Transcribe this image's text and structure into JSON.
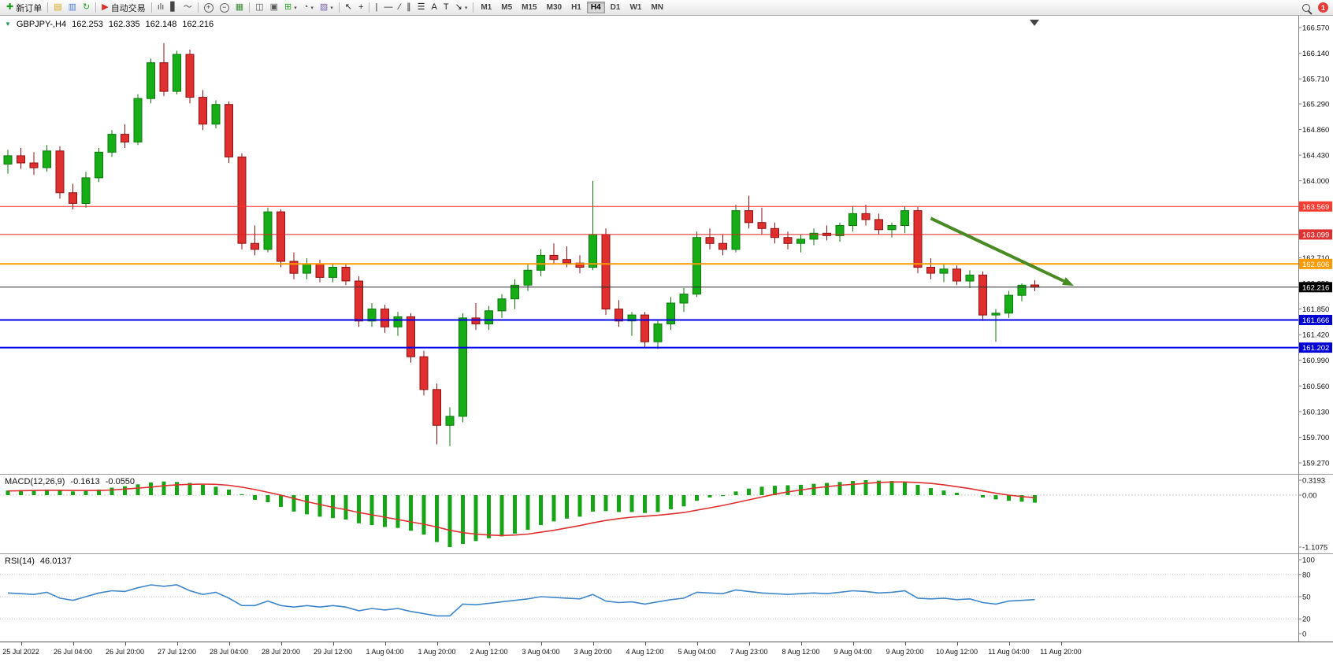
{
  "toolbar": {
    "items": [
      {
        "t": "btn",
        "name": "new-order-button",
        "label": "新订单",
        "glyph": "✚",
        "gc": "#1da11d"
      },
      {
        "t": "sep"
      },
      {
        "t": "btn",
        "name": "market-watch-button",
        "glyph": "▤",
        "gc": "#d9a51a"
      },
      {
        "t": "btn",
        "name": "data-window-button",
        "glyph": "▥",
        "gc": "#4f7fd9"
      },
      {
        "t": "btn",
        "name": "navigator-button",
        "glyph": "↻",
        "gc": "#2aa12a"
      },
      {
        "t": "sep"
      },
      {
        "t": "btn",
        "name": "autotrading-button",
        "label": "自动交易",
        "glyph": "▶",
        "gc": "#d93025"
      },
      {
        "t": "sep"
      },
      {
        "t": "btn",
        "name": "bar-chart-button",
        "glyph": "ılı",
        "gc": "#444444"
      },
      {
        "t": "btn",
        "name": "candlestick-chart-button",
        "glyph": "▋",
        "gc": "#444444"
      },
      {
        "t": "btn",
        "name": "line-chart-button",
        "glyph": "〜",
        "gc": "#444444"
      },
      {
        "t": "sep"
      },
      {
        "t": "btn",
        "name": "zoom-in-button",
        "glyph": "+",
        "circle": true
      },
      {
        "t": "btn",
        "name": "zoom-out-button",
        "glyph": "−",
        "circle": true
      },
      {
        "t": "btn",
        "name": "tile-windows-button",
        "glyph": "▦",
        "gc": "#3f8f3f"
      },
      {
        "t": "sep"
      },
      {
        "t": "btn",
        "name": "arrange-charts-button",
        "glyph": "◫",
        "gc": "#555555"
      },
      {
        "t": "btn",
        "name": "cascade-charts-button",
        "glyph": "▣",
        "gc": "#555555"
      },
      {
        "t": "btn",
        "name": "add-indicator-button",
        "glyph": "⊞",
        "gc": "#2aa12a",
        "caret": true
      },
      {
        "t": "btn",
        "name": "periods-button",
        "glyph": "◔",
        "gc": "#555555",
        "caret": true
      },
      {
        "t": "btn",
        "name": "templates-button",
        "glyph": "▨",
        "gc": "#7a5fb0",
        "caret": true
      },
      {
        "t": "sep"
      },
      {
        "t": "btn",
        "name": "cursor-button",
        "glyph": "↖",
        "gc": "#222222"
      },
      {
        "t": "btn",
        "name": "crosshair-button",
        "glyph": "+",
        "gc": "#222222"
      },
      {
        "t": "sep"
      },
      {
        "t": "btn",
        "name": "vertical-line-button",
        "glyph": "|",
        "gc": "#222222"
      },
      {
        "t": "btn",
        "name": "horizontal-line-button",
        "glyph": "—",
        "gc": "#222222"
      },
      {
        "t": "btn",
        "name": "trendline-button",
        "glyph": "∕",
        "gc": "#222222"
      },
      {
        "t": "btn",
        "name": "equidistant-channel-button",
        "glyph": "∥",
        "gc": "#222222"
      },
      {
        "t": "btn",
        "name": "fibonacci-button",
        "glyph": "☰",
        "gc": "#222222"
      },
      {
        "t": "btn",
        "name": "text-button",
        "glyph": "A",
        "gc": "#222222"
      },
      {
        "t": "btn",
        "name": "text-label-button",
        "glyph": "T",
        "gc": "#222222"
      },
      {
        "t": "btn",
        "name": "arrows-button",
        "glyph": "↘",
        "gc": "#222222",
        "caret": true
      },
      {
        "t": "sep"
      }
    ],
    "timeframes": [
      {
        "label": "M1"
      },
      {
        "label": "M5"
      },
      {
        "label": "M15"
      },
      {
        "label": "M30"
      },
      {
        "label": "H1"
      },
      {
        "label": "H4",
        "active": true
      },
      {
        "label": "D1"
      },
      {
        "label": "W1"
      },
      {
        "label": "MN"
      }
    ],
    "notification_count": "1"
  },
  "chart_data": [
    {
      "type": "candlestick",
      "title": "GBPJPY-,H4",
      "display_ohlc": {
        "open": "162.253",
        "high": "162.335",
        "low": "162.148",
        "close": "162.216"
      },
      "y_axis": {
        "min": 159.27,
        "max": 166.57,
        "tick_labels": [
          "166.570",
          "166.140",
          "165.710",
          "165.290",
          "164.860",
          "164.430",
          "164.000",
          "162.710",
          "162.280",
          "161.850",
          "161.420",
          "160.990",
          "160.560",
          "160.130",
          "159.700",
          "159.270"
        ]
      },
      "x_ticks": {
        "first_index": 1,
        "step": 4,
        "labels": [
          "25 Jul 2022",
          "26 Jul 04:00",
          "26 Jul 20:00",
          "27 Jul 12:00",
          "28 Jul 04:00",
          "28 Jul 20:00",
          "29 Jul 12:00",
          "1 Aug 04:00",
          "1 Aug 20:00",
          "2 Aug 12:00",
          "3 Aug 04:00",
          "3 Aug 20:00",
          "4 Aug 12:00",
          "5 Aug 04:00",
          "7 Aug 23:00",
          "8 Aug 12:00",
          "9 Aug 04:00",
          "9 Aug 20:00",
          "10 Aug 12:00",
          "11 Aug 04:00",
          "11 Aug 20:00"
        ]
      },
      "colors": {
        "up": "#17ad17",
        "up_stroke": "#0b7a0b",
        "down": "#e02f2f",
        "down_stroke": "#8f1212"
      },
      "candles": [
        [
          164.28,
          164.52,
          164.12,
          164.42
        ],
        [
          164.42,
          164.55,
          164.2,
          164.3
        ],
        [
          164.3,
          164.48,
          164.1,
          164.22
        ],
        [
          164.22,
          164.6,
          164.15,
          164.5
        ],
        [
          164.5,
          164.58,
          163.7,
          163.8
        ],
        [
          163.8,
          163.95,
          163.52,
          163.62
        ],
        [
          163.62,
          164.15,
          163.55,
          164.05
        ],
        [
          164.05,
          164.55,
          163.98,
          164.48
        ],
        [
          164.48,
          164.85,
          164.4,
          164.78
        ],
        [
          164.78,
          164.95,
          164.55,
          164.65
        ],
        [
          164.65,
          165.45,
          164.6,
          165.38
        ],
        [
          165.38,
          166.05,
          165.3,
          165.98
        ],
        [
          165.98,
          166.31,
          165.42,
          165.5
        ],
        [
          165.5,
          166.18,
          165.45,
          166.12
        ],
        [
          166.12,
          166.2,
          165.3,
          165.4
        ],
        [
          165.4,
          165.52,
          164.85,
          164.95
        ],
        [
          164.95,
          165.35,
          164.88,
          165.28
        ],
        [
          165.28,
          165.33,
          164.3,
          164.4
        ],
        [
          164.4,
          164.46,
          162.85,
          162.95
        ],
        [
          162.95,
          163.25,
          162.75,
          162.85
        ],
        [
          162.85,
          163.55,
          162.8,
          163.48
        ],
        [
          163.48,
          163.52,
          162.55,
          162.65
        ],
        [
          162.65,
          162.8,
          162.35,
          162.45
        ],
        [
          162.45,
          162.7,
          162.35,
          162.6
        ],
        [
          162.6,
          162.68,
          162.3,
          162.38
        ],
        [
          162.38,
          162.62,
          162.3,
          162.55
        ],
        [
          162.55,
          162.6,
          162.25,
          162.32
        ],
        [
          162.32,
          162.4,
          161.55,
          161.65
        ],
        [
          161.65,
          161.95,
          161.55,
          161.85
        ],
        [
          161.85,
          161.92,
          161.45,
          161.55
        ],
        [
          161.55,
          161.8,
          161.4,
          161.72
        ],
        [
          161.72,
          161.78,
          160.95,
          161.05
        ],
        [
          161.05,
          161.15,
          160.4,
          160.5
        ],
        [
          160.5,
          160.6,
          159.58,
          159.9
        ],
        [
          159.9,
          160.2,
          159.55,
          160.05
        ],
        [
          160.05,
          161.78,
          159.95,
          161.7
        ],
        [
          161.7,
          161.95,
          161.5,
          161.6
        ],
        [
          161.6,
          161.9,
          161.5,
          161.82
        ],
        [
          161.82,
          162.1,
          161.7,
          162.02
        ],
        [
          162.02,
          162.35,
          161.85,
          162.25
        ],
        [
          162.25,
          162.6,
          162.15,
          162.5
        ],
        [
          162.5,
          162.85,
          162.4,
          162.75
        ],
        [
          162.75,
          162.95,
          162.6,
          162.68
        ],
        [
          162.68,
          162.9,
          162.55,
          162.62
        ],
        [
          162.62,
          162.75,
          162.45,
          162.55
        ],
        [
          162.55,
          164.0,
          162.5,
          163.1
        ],
        [
          163.1,
          163.2,
          161.75,
          161.85
        ],
        [
          161.85,
          162.0,
          161.55,
          161.65
        ],
        [
          161.65,
          161.8,
          161.4,
          161.75
        ],
        [
          161.75,
          161.8,
          161.2,
          161.3
        ],
        [
          161.3,
          161.65,
          161.18,
          161.6
        ],
        [
          161.6,
          162.05,
          161.5,
          161.95
        ],
        [
          161.95,
          162.2,
          161.8,
          162.1
        ],
        [
          162.1,
          163.15,
          162.05,
          163.05
        ],
        [
          163.05,
          163.2,
          162.85,
          162.95
        ],
        [
          162.95,
          163.1,
          162.75,
          162.85
        ],
        [
          162.85,
          163.6,
          162.8,
          163.5
        ],
        [
          163.5,
          163.75,
          163.2,
          163.3
        ],
        [
          163.3,
          163.55,
          163.1,
          163.2
        ],
        [
          163.2,
          163.3,
          162.95,
          163.05
        ],
        [
          163.05,
          163.15,
          162.85,
          162.95
        ],
        [
          162.95,
          163.1,
          162.8,
          163.02
        ],
        [
          163.02,
          163.2,
          162.92,
          163.12
        ],
        [
          163.12,
          163.25,
          163.0,
          163.08
        ],
        [
          163.08,
          163.3,
          162.98,
          163.25
        ],
        [
          163.25,
          163.58,
          163.15,
          163.45
        ],
        [
          163.45,
          163.6,
          163.25,
          163.35
        ],
        [
          163.35,
          163.45,
          163.1,
          163.18
        ],
        [
          163.18,
          163.3,
          163.05,
          163.25
        ],
        [
          163.25,
          163.57,
          163.12,
          163.5
        ],
        [
          163.5,
          163.56,
          162.45,
          162.55
        ],
        [
          162.55,
          162.7,
          162.35,
          162.45
        ],
        [
          162.45,
          162.6,
          162.3,
          162.52
        ],
        [
          162.52,
          162.58,
          162.25,
          162.32
        ],
        [
          162.32,
          162.5,
          162.2,
          162.42
        ],
        [
          162.42,
          162.48,
          161.65,
          161.75
        ],
        [
          161.75,
          161.85,
          161.3,
          161.78
        ],
        [
          161.78,
          162.15,
          161.7,
          162.08
        ],
        [
          162.08,
          162.28,
          161.98,
          162.25
        ],
        [
          162.253,
          162.335,
          162.148,
          162.216
        ]
      ],
      "hlines": [
        {
          "price": 163.569,
          "color": "#ff2d2d",
          "width": 1,
          "badge_bg": "#ff3b30"
        },
        {
          "price": 163.099,
          "color": "#dd2222",
          "width": 1,
          "badge_bg": "#e03131"
        },
        {
          "price": 162.606,
          "color": "#ff9900",
          "width": 2,
          "badge_bg": "#ff9900"
        },
        {
          "price": 161.666,
          "color": "#0000e6",
          "width": 2,
          "badge_bg": "#0000d6"
        },
        {
          "price": 161.202,
          "color": "#0000e6",
          "width": 2,
          "badge_bg": "#0000d6"
        }
      ],
      "current_price": {
        "value": 162.216,
        "color": "#2a2a2a",
        "badge_bg": "#000000"
      },
      "trend_arrow": {
        "from": {
          "index": 71,
          "price": 163.37
        },
        "to": {
          "index": 82,
          "price": 162.24
        },
        "color": "#4a8a22"
      }
    },
    {
      "type": "macd",
      "label": "MACD(12,26,9)",
      "display": {
        "main": "-0.1613",
        "signal": "-0.0550"
      },
      "y_axis": {
        "max": 0.3193,
        "min": -1.1075,
        "labels": [
          "0.3193",
          "0.00",
          "-1.1075"
        ]
      },
      "colors": {
        "histogram": "#17a517",
        "signal": "#e02f2f"
      },
      "histogram": [
        0.1,
        0.11,
        0.11,
        0.12,
        0.1,
        0.08,
        0.09,
        0.12,
        0.16,
        0.19,
        0.23,
        0.27,
        0.29,
        0.28,
        0.26,
        0.22,
        0.18,
        0.12,
        0.02,
        -0.1,
        -0.15,
        -0.25,
        -0.35,
        -0.41,
        -0.46,
        -0.49,
        -0.52,
        -0.6,
        -0.64,
        -0.68,
        -0.7,
        -0.76,
        -0.84,
        -1.0,
        -1.1075,
        -1.04,
        -0.98,
        -0.92,
        -0.88,
        -0.82,
        -0.74,
        -0.64,
        -0.56,
        -0.5,
        -0.46,
        -0.35,
        -0.34,
        -0.36,
        -0.36,
        -0.38,
        -0.36,
        -0.3,
        -0.24,
        -0.12,
        -0.05,
        -0.02,
        0.08,
        0.14,
        0.18,
        0.2,
        0.21,
        0.22,
        0.24,
        0.26,
        0.28,
        0.3,
        0.3193,
        0.31,
        0.3,
        0.28,
        0.22,
        0.15,
        0.1,
        0.05,
        0.0,
        -0.05,
        -0.09,
        -0.12,
        -0.14,
        -0.1613
      ],
      "signal_line": [
        0.09,
        0.095,
        0.1,
        0.105,
        0.105,
        0.1,
        0.1,
        0.1,
        0.11,
        0.13,
        0.15,
        0.17,
        0.2,
        0.22,
        0.23,
        0.235,
        0.23,
        0.21,
        0.17,
        0.12,
        0.06,
        0.0,
        -0.07,
        -0.14,
        -0.2,
        -0.26,
        -0.31,
        -0.37,
        -0.42,
        -0.47,
        -0.52,
        -0.57,
        -0.62,
        -0.68,
        -0.75,
        -0.8,
        -0.83,
        -0.85,
        -0.86,
        -0.85,
        -0.83,
        -0.79,
        -0.75,
        -0.7,
        -0.65,
        -0.59,
        -0.54,
        -0.5,
        -0.47,
        -0.45,
        -0.43,
        -0.4,
        -0.37,
        -0.32,
        -0.27,
        -0.22,
        -0.16,
        -0.1,
        -0.04,
        0.02,
        0.07,
        0.11,
        0.15,
        0.18,
        0.21,
        0.23,
        0.25,
        0.27,
        0.28,
        0.28,
        0.27,
        0.25,
        0.22,
        0.18,
        0.14,
        0.09,
        0.04,
        0.0,
        -0.03,
        -0.055
      ]
    },
    {
      "type": "rsi",
      "label": "RSI(14)",
      "display": {
        "value": "46.0137"
      },
      "y_axis": {
        "min": 0,
        "max": 100,
        "labels": [
          "100",
          "80",
          "50",
          "20",
          "0"
        ],
        "levels": [
          80,
          50,
          20
        ]
      },
      "color": "#3f87c9",
      "line": [
        55,
        54,
        53,
        56,
        48,
        45,
        50,
        55,
        58,
        57,
        62,
        66,
        64,
        66,
        58,
        53,
        56,
        48,
        38,
        38,
        44,
        38,
        36,
        38,
        36,
        38,
        36,
        31,
        34,
        32,
        34,
        30,
        27,
        24,
        24,
        40,
        39,
        41,
        43,
        45,
        47,
        50,
        49,
        48,
        47,
        53,
        44,
        42,
        43,
        40,
        43,
        46,
        48,
        56,
        55,
        54,
        59,
        57,
        55,
        54,
        53,
        54,
        55,
        54,
        56,
        58,
        57,
        55,
        56,
        58,
        48,
        47,
        48,
        46,
        47,
        42,
        40,
        44,
        45,
        46.0137
      ]
    }
  ]
}
